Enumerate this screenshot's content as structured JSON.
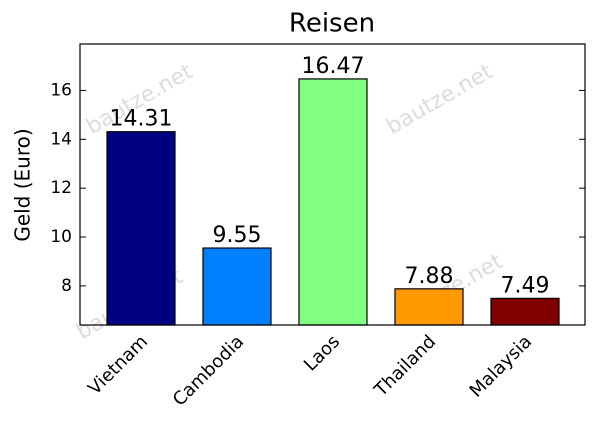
{
  "chart_data": {
    "type": "bar",
    "title": "Reisen",
    "y_label": "Geld (Euro)",
    "categories": [
      "Vietnam",
      "Cambodia",
      "Laos",
      "Thailand",
      "Malaysia"
    ],
    "values": [
      14.31,
      9.55,
      16.47,
      7.88,
      7.49
    ],
    "colors": [
      "#000080",
      "#0080ff",
      "#80ff80",
      "#ff9900",
      "#800000"
    ],
    "ylim": [
      6.4,
      17.9
    ],
    "yticks": [
      8,
      10,
      12,
      14,
      16
    ],
    "grid": false,
    "watermark": "bautze.net"
  }
}
